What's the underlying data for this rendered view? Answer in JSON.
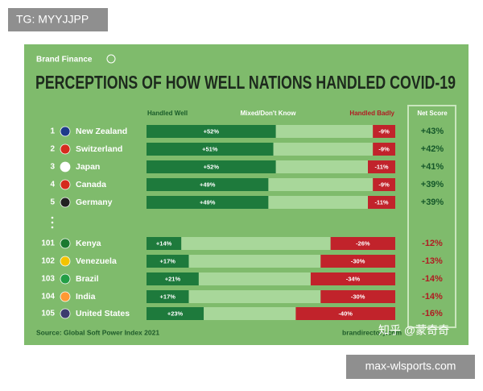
{
  "watermark_top": "TG: MYYJJPP",
  "watermark_bottom": "max-wlsports.com",
  "watermark_inline": "知乎 @蒙奇奇",
  "chart_data": {
    "type": "bar",
    "orientation": "horizontal",
    "stacked": true,
    "brand": "Brand Finance",
    "title": "PERCEPTIONS OF HOW WELL NATIONS HANDLED COVID-19",
    "ranks": [
      1,
      2,
      3,
      4,
      5,
      101,
      102,
      103,
      104,
      105
    ],
    "categories": [
      "New Zealand",
      "Switzerland",
      "Japan",
      "Canada",
      "Germany",
      "Kenya",
      "Venezuela",
      "Brazil",
      "India",
      "United States"
    ],
    "xlim": [
      0,
      100
    ],
    "series": [
      {
        "name": "Handled Well",
        "color": "#1e7a3c",
        "values": [
          52,
          51,
          52,
          49,
          49,
          14,
          17,
          21,
          17,
          23
        ],
        "value_labels": [
          "+52%",
          "+51%",
          "+52%",
          "+49%",
          "+49%",
          "+14%",
          "+17%",
          "+21%",
          "+17%",
          "+23%"
        ]
      },
      {
        "name": "Mixed/Don't Know",
        "color": "#a8d79a",
        "values": [
          39,
          40,
          37,
          42,
          40,
          60,
          53,
          45,
          53,
          37
        ]
      },
      {
        "name": "Handled Badly",
        "color": "#c1232b",
        "values": [
          9,
          9,
          11,
          9,
          11,
          26,
          30,
          34,
          30,
          40
        ],
        "value_labels": [
          "-9%",
          "-9%",
          "-11%",
          "-9%",
          "-11%",
          "-26%",
          "-30%",
          "-34%",
          "-30%",
          "-40%"
        ]
      }
    ],
    "net_score": {
      "name": "Net Score",
      "values": [
        43,
        42,
        41,
        39,
        39,
        -12,
        -13,
        -14,
        -14,
        -16
      ],
      "value_labels": [
        "+43%",
        "+42%",
        "+41%",
        "+39%",
        "+39%",
        "-12%",
        "-13%",
        "-14%",
        "-14%",
        "-16%"
      ]
    },
    "source": "Source: Global Soft Power Index 2021",
    "website": "brandirectory.com"
  }
}
